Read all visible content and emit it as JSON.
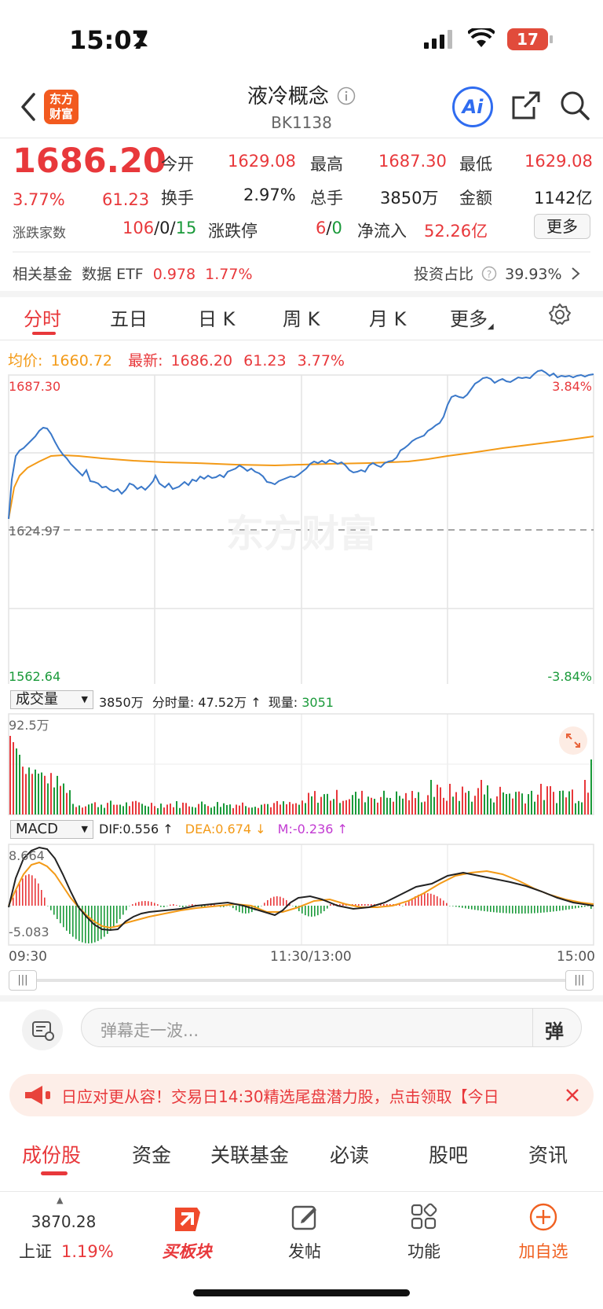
{
  "status_bar": {
    "time": "15:07",
    "battery": "17"
  },
  "header": {
    "title": "液冷概念",
    "code": "BK1138",
    "ai_label": "Ai"
  },
  "quote": {
    "price": "1686.20",
    "change_pct": "3.77%",
    "change": "61.23",
    "open_label": "今开",
    "open": "1629.08",
    "high_label": "最高",
    "high": "1687.30",
    "low_label": "最低",
    "low": "1629.08",
    "turnover_label": "换手",
    "turnover": "2.97%",
    "volume_label": "总手",
    "volume": "3850万",
    "amount_label": "金额",
    "amount": "1142亿",
    "adv_dec_label": "涨跌家数",
    "adv": "106",
    "sep1": "/",
    "flat": "0",
    "sep2": "/",
    "dec": "15",
    "limit_label": "涨跌停",
    "limit_up": "6",
    "sep3": "/",
    "limit_down": "0",
    "inflow_label": "净流入",
    "inflow": "52.26亿",
    "more_button": "更多"
  },
  "fund_row": {
    "label": "相关基金",
    "etf_label": "数据 ETF",
    "etf_price": "0.978",
    "etf_pct": "1.77%",
    "ratio_label": "投资占比",
    "ratio": "39.93%"
  },
  "chart_tabs": [
    "分时",
    "五日",
    "日 K",
    "周 K",
    "月 K",
    "更多"
  ],
  "chart_info": {
    "avg_label": "均价:",
    "avg": "1660.72",
    "latest_label": "最新:",
    "latest": "1686.20",
    "latest_chg": "61.23",
    "latest_pct": "3.77%"
  },
  "price_chart": {
    "y_top": "1687.30",
    "y_mid": "1624.97",
    "y_bottom": "1562.64",
    "pct_top": "3.84%",
    "pct_bottom": "-3.84%",
    "watermark": "东方财富"
  },
  "volume_panel": {
    "dropdown": "成交量",
    "total": "3850万",
    "fenshi_label": "分时量:",
    "fenshi": "47.52万 ↑",
    "now_label": "现量:",
    "now": "3051",
    "y_max": "92.5万"
  },
  "macd_panel": {
    "dropdown": "MACD",
    "dif": "DIF:0.556 ↑",
    "dea": "DEA:0.674 ↓",
    "m": "M:-0.236 ↑",
    "y_max": "8.664",
    "y_min": "-5.083"
  },
  "time_axis": {
    "start": "09:30",
    "mid": "11:30/13:00",
    "end": "15:00"
  },
  "comment": {
    "placeholder": "弹幕走一波...",
    "danmu_icon": "弹"
  },
  "banner": {
    "text": "日应对更从容！交易日14:30精选尾盘潜力股，点击领取【今日"
  },
  "bottom_tabs": [
    "成份股",
    "资金",
    "关联基金",
    "必读",
    "股吧",
    "资讯"
  ],
  "bottom_nav": {
    "index_value": "3870.28",
    "index_name": "上证",
    "index_pct": "1.19%",
    "buy_label": "买板块",
    "post_label": "发帖",
    "func_label": "功能",
    "add_label": "加自选"
  },
  "colors": {
    "up": "#e8383b",
    "down": "#1a9a3a",
    "avg_line": "#f39a17",
    "price_line": "#3a78c9"
  }
}
